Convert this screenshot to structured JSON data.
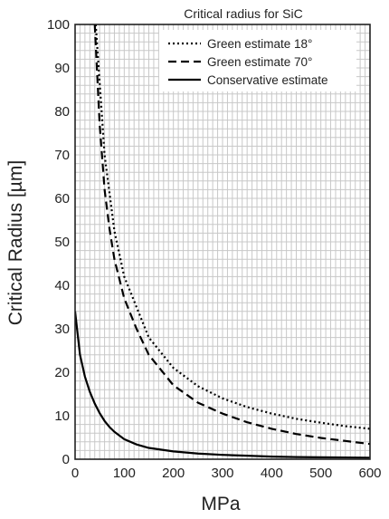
{
  "chart_data": {
    "type": "line",
    "title": "Critical radius for SiC",
    "xlabel": "MPa",
    "ylabel": "Critical Radius [µm]",
    "xlim": [
      0,
      600
    ],
    "ylim": [
      0,
      100
    ],
    "xticks": [
      0,
      100,
      200,
      300,
      400,
      500,
      600
    ],
    "yticks": [
      0,
      10,
      20,
      30,
      40,
      50,
      60,
      70,
      80,
      90,
      100
    ],
    "grid": true,
    "legend_position": "top-right",
    "series": [
      {
        "name": "Green estimate 18°",
        "style": "dotted",
        "points": [
          [
            42,
            100
          ],
          [
            60,
            70
          ],
          [
            80,
            52.5
          ],
          [
            100,
            42
          ],
          [
            150,
            28
          ],
          [
            200,
            21
          ],
          [
            250,
            16.8
          ],
          [
            300,
            14
          ],
          [
            350,
            12
          ],
          [
            400,
            10.5
          ],
          [
            450,
            9.3
          ],
          [
            500,
            8.4
          ],
          [
            550,
            7.6
          ],
          [
            600,
            7
          ]
        ]
      },
      {
        "name": "Green estimate 70°",
        "style": "dashed",
        "points": [
          [
            40,
            100
          ],
          [
            50,
            77
          ],
          [
            60,
            62
          ],
          [
            70,
            53
          ],
          [
            80,
            46
          ],
          [
            100,
            37
          ],
          [
            125,
            30
          ],
          [
            150,
            24
          ],
          [
            200,
            17
          ],
          [
            250,
            13
          ],
          [
            300,
            10.5
          ],
          [
            350,
            8.5
          ],
          [
            400,
            7
          ],
          [
            450,
            5.8
          ],
          [
            500,
            4.9
          ],
          [
            550,
            4.2
          ],
          [
            600,
            3.5
          ]
        ]
      },
      {
        "name": "Conservative estimate",
        "style": "solid",
        "points": [
          [
            0,
            34
          ],
          [
            10,
            24
          ],
          [
            20,
            19
          ],
          [
            30,
            15.5
          ],
          [
            40,
            12.8
          ],
          [
            50,
            10.6
          ],
          [
            60,
            8.8
          ],
          [
            70,
            7.4
          ],
          [
            80,
            6.3
          ],
          [
            100,
            4.6
          ],
          [
            125,
            3.4
          ],
          [
            150,
            2.6
          ],
          [
            200,
            1.8
          ],
          [
            250,
            1.3
          ],
          [
            300,
            1
          ],
          [
            350,
            0.8
          ],
          [
            400,
            0.6
          ],
          [
            450,
            0.5
          ],
          [
            500,
            0.45
          ],
          [
            550,
            0.4
          ],
          [
            600,
            0.35
          ]
        ]
      }
    ]
  },
  "colors": {
    "grid": "#c8c8c8",
    "axis": "#222222",
    "line": "#000000"
  }
}
